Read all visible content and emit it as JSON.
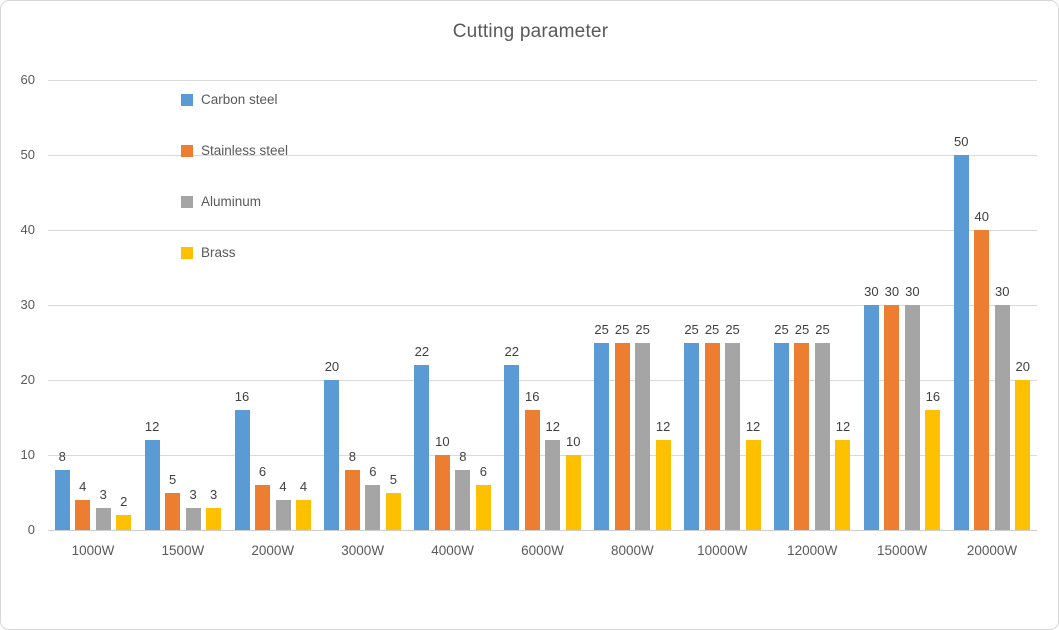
{
  "chart_data": {
    "type": "bar",
    "title": "Cutting parameter",
    "categories": [
      "1000W",
      "1500W",
      "2000W",
      "3000W",
      "4000W",
      "6000W",
      "8000W",
      "10000W",
      "12000W",
      "15000W",
      "20000W"
    ],
    "series": [
      {
        "name": "Carbon steel",
        "color": "#5B9BD5",
        "values": [
          8,
          12,
          16,
          20,
          22,
          22,
          25,
          25,
          25,
          30,
          50
        ]
      },
      {
        "name": "Stainless steel",
        "color": "#ED7D31",
        "values": [
          4,
          5,
          6,
          8,
          10,
          16,
          25,
          25,
          25,
          30,
          40
        ]
      },
      {
        "name": "Aluminum",
        "color": "#A5A5A5",
        "values": [
          3,
          3,
          4,
          6,
          8,
          12,
          25,
          25,
          25,
          30,
          30
        ]
      },
      {
        "name": "Brass",
        "color": "#FFC000",
        "values": [
          2,
          3,
          4,
          5,
          6,
          10,
          12,
          12,
          12,
          16,
          20
        ]
      }
    ],
    "xlabel": "",
    "ylabel": "",
    "ylim": [
      0,
      60
    ],
    "y_ticks": [
      0,
      10,
      20,
      30,
      40,
      50,
      60
    ],
    "grid": true,
    "data_labels": true,
    "legend_position": "upper-left-vertical",
    "colors": {
      "gridline": "#D9D9D9",
      "axis_line": "#CECECE",
      "tick_label": "#595959",
      "data_label": "#404040",
      "title": "#595959",
      "frame_border": "#D7D7D7",
      "background": "#FFFFFF"
    }
  }
}
